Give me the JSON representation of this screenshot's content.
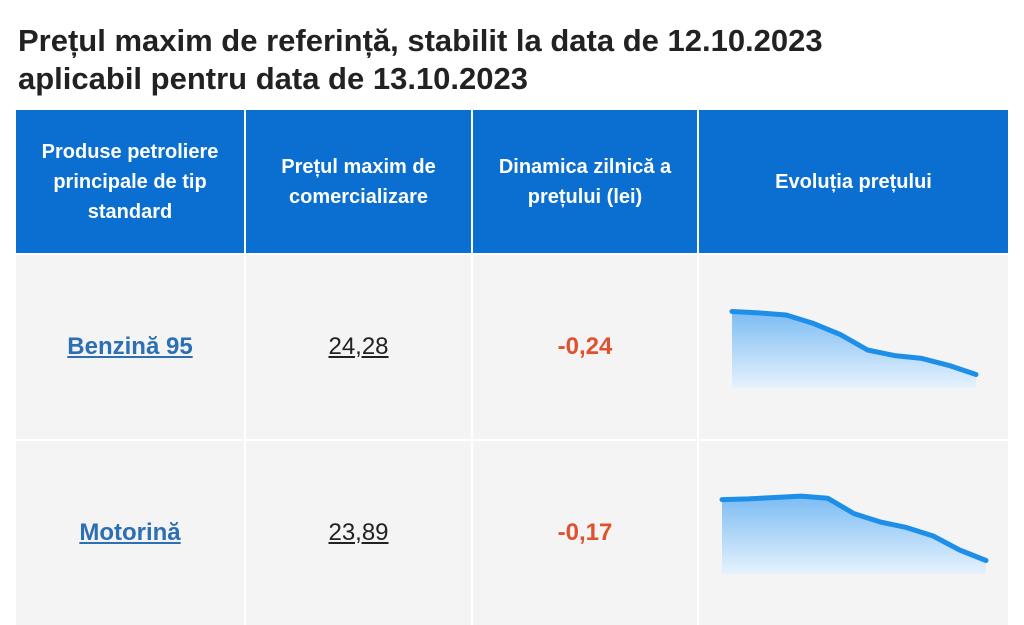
{
  "title": {
    "line1": "Prețul maxim de referință, stabilit la data de 12.10.2023",
    "line2": "aplicabil pentru data de 13.10.2023"
  },
  "table": {
    "headers": [
      "Produse petroliere principale de tip standard",
      "Prețul maxim de comercializare",
      "Dinamica zilnică a prețului (lei)",
      "Evoluția prețului"
    ],
    "rows": [
      {
        "product": "Benzină 95",
        "price": "24,28",
        "change": "-0,24",
        "trend": [
          0.95,
          0.93,
          0.9,
          0.78,
          0.62,
          0.4,
          0.32,
          0.28,
          0.18,
          0.05
        ]
      },
      {
        "product": "Motorină",
        "price": "23,89",
        "change": "-0,17",
        "trend": [
          0.92,
          0.93,
          0.95,
          0.97,
          0.94,
          0.72,
          0.6,
          0.52,
          0.4,
          0.2,
          0.05
        ]
      }
    ]
  },
  "colors": {
    "header_bg": "#0b6fd1",
    "link": "#2d6fb3",
    "negative": "#e0522f",
    "spark_line": "#1e8fe8"
  }
}
